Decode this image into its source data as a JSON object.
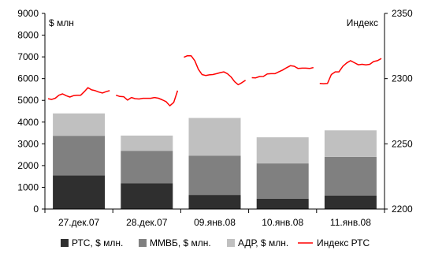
{
  "chart_data": {
    "type": "bar",
    "stacked": true,
    "categories": [
      "27.дек.07",
      "28.дек.07",
      "09.янв.08",
      "10.янв.08",
      "11.янв.08"
    ],
    "left_axis": {
      "label": "$ млн",
      "ylim": [
        0,
        9000
      ],
      "ticks": [
        0,
        1000,
        2000,
        3000,
        4000,
        5000,
        6000,
        7000,
        8000,
        9000
      ]
    },
    "right_axis": {
      "label": "Индекс",
      "ylim": [
        2200,
        2350
      ],
      "ticks": [
        2200,
        2250,
        2300,
        2350
      ]
    },
    "series": [
      {
        "name": "РТС, $ млн.",
        "color": "#2f2f2f",
        "values": [
          1550,
          1180,
          650,
          480,
          620
        ]
      },
      {
        "name": "ММВБ, $ млн.",
        "color": "#808080",
        "values": [
          1820,
          1500,
          1800,
          1620,
          1780
        ]
      },
      {
        "name": "АДР, $ млн.",
        "color": "#c0c0c0",
        "values": [
          1030,
          700,
          1740,
          1200,
          1220
        ]
      }
    ],
    "line_series": {
      "name": "Индекс РТС",
      "color": "#ff0000",
      "axis": "right",
      "segments": [
        [
          2284.6,
          2284.0,
          2285.0,
          2287.3,
          2288.3,
          2286.9,
          2285.9,
          2286.9,
          2287.3,
          2287.3,
          2290.0,
          2293.1,
          2291.4,
          2290.8,
          2289.7,
          2289.0,
          2290.0,
          2290.8
        ],
        [
          2287.3,
          2286.3,
          2286.1,
          2283.5,
          2285.5,
          2284.6,
          2284.4,
          2284.9,
          2284.9,
          2284.9,
          2285.5,
          2285.0,
          2283.8,
          2282.4,
          2279.2,
          2281.8,
          2290.8
        ],
        [
          2316.4,
          2317.6,
          2317.5,
          2313.8,
          2307.1,
          2303.1,
          2302.4,
          2302.9,
          2303.1,
          2303.8,
          2304.6,
          2305.2,
          2303.8,
          2301.3,
          2297.6,
          2295.3,
          2296.9,
          2298.8
        ],
        [
          2300.7,
          2300.6,
          2301.6,
          2301.7,
          2303.6,
          2303.8,
          2303.8,
          2305.2,
          2306.6,
          2308.3,
          2309.9,
          2309.5,
          2307.8,
          2308.0,
          2308.0,
          2307.8,
          2308.5
        ],
        [
          2296.3,
          2296.1,
          2296.3,
          2303.1,
          2305.2,
          2305.2,
          2309.4,
          2312.0,
          2313.8,
          2312.2,
          2310.6,
          2311.0,
          2310.5,
          2311.0,
          2313.1,
          2313.8,
          2315.4
        ]
      ]
    },
    "legend_position": "bottom",
    "grid": false
  }
}
